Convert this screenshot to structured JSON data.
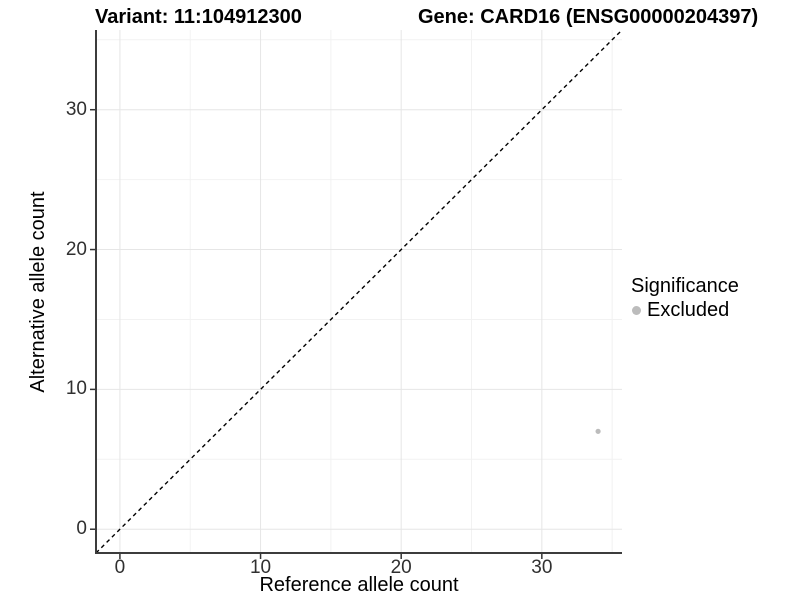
{
  "header": {
    "variant_title": "Variant: 11:104912300",
    "gene_title": "Gene: CARD16 (ENSG00000204397)"
  },
  "chart_data": {
    "type": "scatter",
    "xlabel": "Reference allele count",
    "ylabel": "Alternative allele count",
    "xlim": [
      -1.7,
      35.7
    ],
    "ylim": [
      -1.7,
      35.7
    ],
    "x_ticks": [
      0,
      10,
      20,
      30
    ],
    "y_ticks": [
      0,
      10,
      20,
      30
    ],
    "x_minor_breaks": [
      5,
      15,
      25,
      35
    ],
    "y_minor_breaks": [
      5,
      15,
      25,
      35
    ],
    "grid": true,
    "reference_line": {
      "equation": "y = x",
      "style": "dashed",
      "color": "#000000"
    },
    "series": [
      {
        "name": "Excluded",
        "color": "#bcbcbc",
        "points": [
          {
            "x": 34,
            "y": 7
          }
        ]
      }
    ],
    "legend": {
      "title": "Significance",
      "position": "right",
      "items": [
        {
          "label": "Excluded",
          "color": "#bcbcbc",
          "shape": "circle"
        }
      ]
    }
  },
  "colors": {
    "background": "#ffffff",
    "grid_major": "#e6e6e6",
    "grid_minor": "#f2f2f2",
    "axis_line": "#3c3c3c",
    "tick": "#333333",
    "tick_text": "#303030",
    "point": "#bcbcbc"
  }
}
